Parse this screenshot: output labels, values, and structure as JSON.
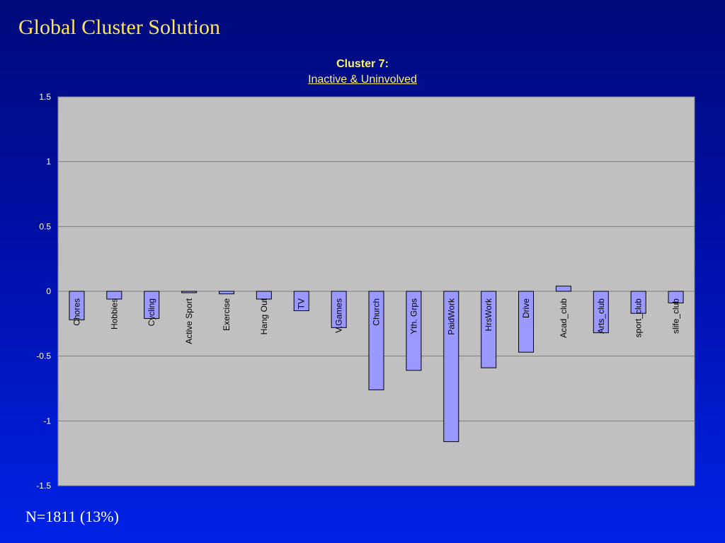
{
  "slide": {
    "title": "Global Cluster Solution",
    "footer": "N=1811 (13%)"
  },
  "colors": {
    "background_top": "#000a7a",
    "background_bottom": "#0022e6",
    "title": "#ffe45c",
    "plot_area": "#c0c0c0",
    "bar_fill": "#9999ff",
    "bar_stroke": "#000000"
  },
  "chart_data": {
    "type": "bar",
    "title": "Cluster 7:",
    "subtitle": "Inactive & Uninvolved",
    "xlabel": "",
    "ylabel": "",
    "ylim": [
      -1.5,
      1.5
    ],
    "yticks": [
      "1.5",
      "1",
      "0.5",
      "0",
      "-0.5",
      "-1",
      "-1.5"
    ],
    "grid": true,
    "categories": [
      "Chores",
      "Hobbies",
      "Cycling",
      "Active Sport",
      "Exercise",
      "Hang Out",
      "TV",
      "V.Games",
      "Church",
      "Yth. Grps",
      "PaidWork",
      "HrsWork",
      "Drive",
      "Acad_club",
      "Arts_club",
      "sport_club",
      "slife_club"
    ],
    "values": [
      -0.22,
      -0.06,
      -0.21,
      -0.01,
      -0.02,
      -0.06,
      -0.15,
      -0.28,
      -0.76,
      -0.61,
      -1.16,
      -0.59,
      -0.47,
      0.04,
      -0.32,
      -0.17,
      -0.09
    ]
  }
}
